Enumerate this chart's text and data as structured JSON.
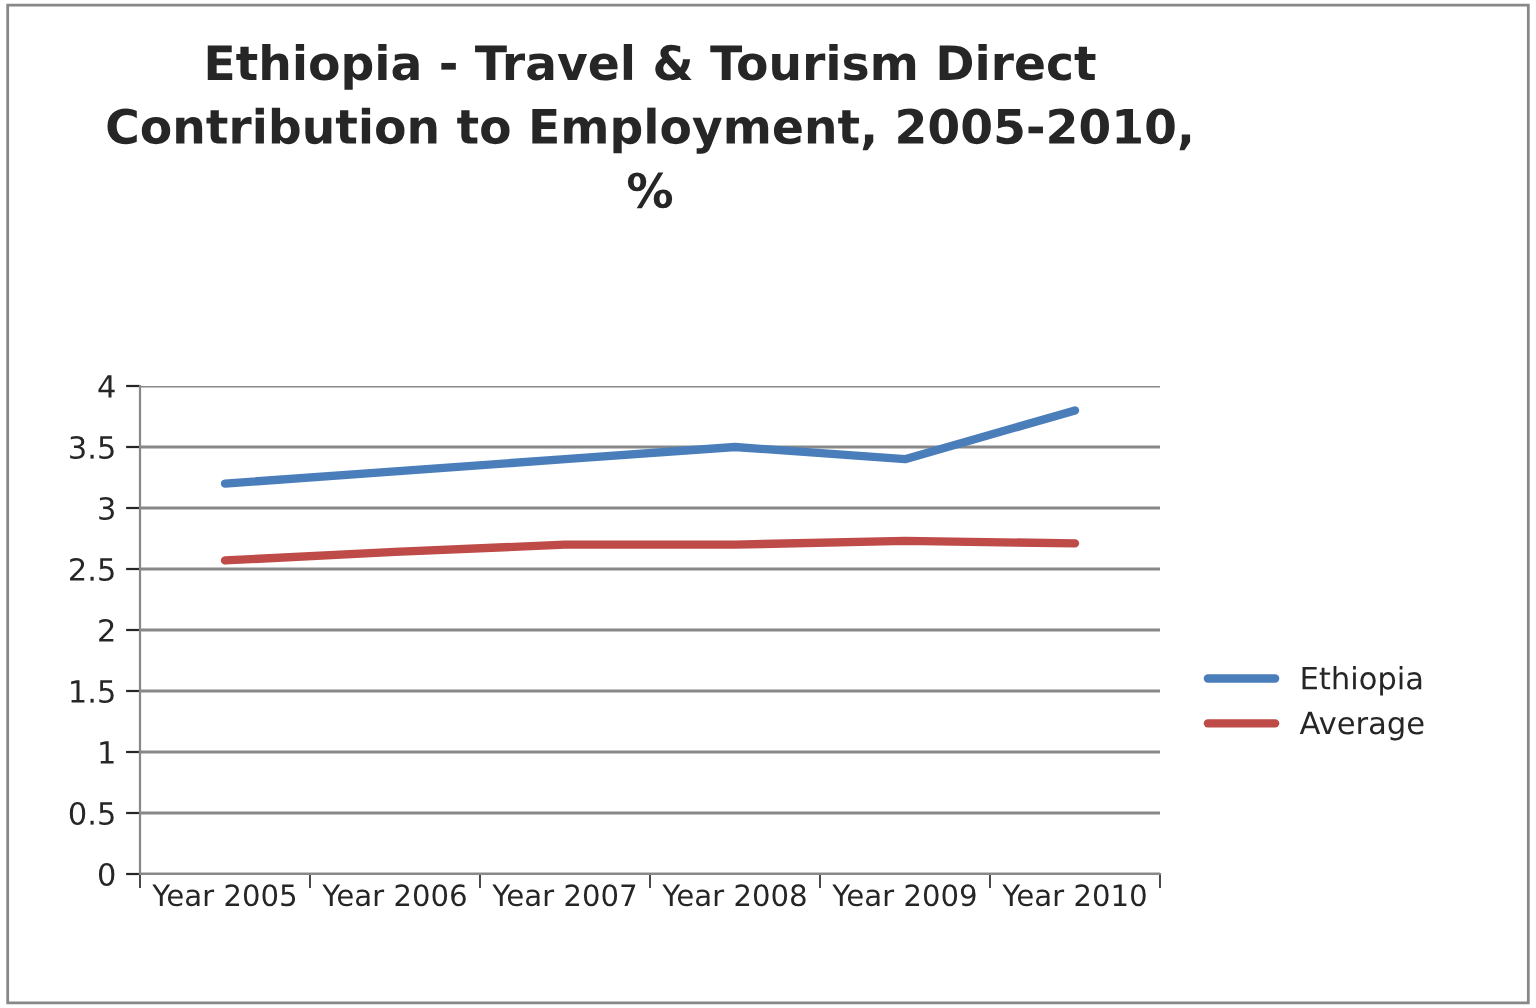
{
  "chart_data": {
    "type": "line",
    "title": "Ethiopia - Travel & Tourism Direct\nContribution to Employment, 2005-2010,\n%",
    "categories": [
      "Year 2005",
      "Year 2006",
      "Year 2007",
      "Year 2008",
      "Year 2009",
      "Year 2010"
    ],
    "series": [
      {
        "name": "Ethiopia",
        "color": "#4a7ebb",
        "values": [
          3.2,
          3.3,
          3.4,
          3.5,
          3.4,
          3.8
        ]
      },
      {
        "name": "Average",
        "color": "#be4b48",
        "values": [
          2.57,
          2.64,
          2.7,
          2.7,
          2.73,
          2.71
        ]
      }
    ],
    "ylim": [
      0,
      4
    ],
    "yticks": [
      0,
      0.5,
      1,
      1.5,
      2,
      2.5,
      3,
      3.5,
      4
    ],
    "grid": "y",
    "legend": "right",
    "marker": "none",
    "line_style": "solid"
  }
}
